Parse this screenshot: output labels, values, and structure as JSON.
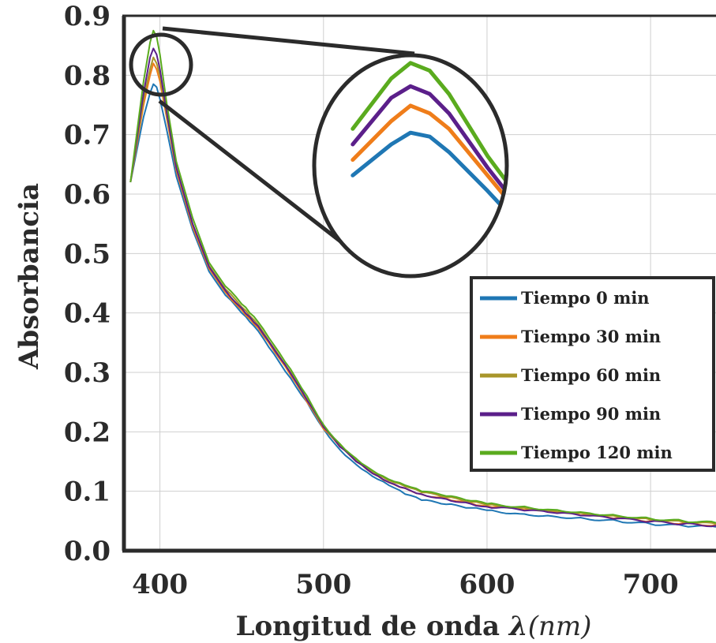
{
  "chart_data": {
    "type": "line",
    "xlabel": "Longitud de onda ",
    "xlabel_symbol": "λ",
    "xlabel_unit": "(nm)",
    "ylabel": "Absorbancia",
    "xlim": [
      378,
      740
    ],
    "ylim": [
      0.0,
      0.9
    ],
    "xticks": [
      400,
      500,
      600,
      700
    ],
    "yticks": [
      0.0,
      0.1,
      0.2,
      0.3,
      0.4,
      0.5,
      0.6,
      0.7,
      0.8,
      0.9
    ],
    "xtick_labels": [
      "400",
      "500",
      "600",
      "700"
    ],
    "ytick_labels": [
      "0.0",
      "0.1",
      "0.2",
      "0.3",
      "0.4",
      "0.5",
      "0.6",
      "0.7",
      "0.8",
      "0.9"
    ],
    "grid": true,
    "legend_position": "right",
    "inset": "zoom-circle",
    "x": [
      382,
      390,
      394,
      396,
      398,
      400,
      404,
      410,
      420,
      430,
      440,
      450,
      455,
      460,
      470,
      480,
      490,
      500,
      510,
      520,
      530,
      540,
      550,
      560,
      575,
      590,
      600,
      620,
      640,
      660,
      680,
      700,
      720,
      740
    ],
    "series": [
      {
        "name": "Tiempo 0 min",
        "color": "#1f77b4",
        "values": [
          0.62,
          0.73,
          0.77,
          0.785,
          0.78,
          0.76,
          0.71,
          0.63,
          0.54,
          0.47,
          0.43,
          0.4,
          0.385,
          0.37,
          0.33,
          0.29,
          0.25,
          0.205,
          0.17,
          0.145,
          0.125,
          0.11,
          0.095,
          0.085,
          0.078,
          0.072,
          0.068,
          0.062,
          0.058,
          0.054,
          0.05,
          0.045,
          0.042,
          0.04
        ]
      },
      {
        "name": "Tiempo 30 min",
        "color": "#ef7d1a",
        "values": [
          0.62,
          0.75,
          0.8,
          0.82,
          0.81,
          0.79,
          0.73,
          0.64,
          0.545,
          0.475,
          0.435,
          0.405,
          0.39,
          0.375,
          0.335,
          0.295,
          0.25,
          0.205,
          0.175,
          0.15,
          0.13,
          0.115,
          0.105,
          0.095,
          0.088,
          0.08,
          0.075,
          0.07,
          0.065,
          0.06,
          0.055,
          0.05,
          0.046,
          0.043
        ]
      },
      {
        "name": "Tiempo 60 min",
        "color": "#a8962a",
        "values": [
          0.62,
          0.76,
          0.81,
          0.83,
          0.82,
          0.8,
          0.735,
          0.645,
          0.55,
          0.48,
          0.44,
          0.41,
          0.395,
          0.38,
          0.34,
          0.3,
          0.255,
          0.21,
          0.178,
          0.152,
          0.132,
          0.118,
          0.108,
          0.098,
          0.09,
          0.082,
          0.077,
          0.072,
          0.067,
          0.062,
          0.057,
          0.052,
          0.048,
          0.045
        ]
      },
      {
        "name": "Tiempo 90 min",
        "color": "#5b1f8a",
        "values": [
          0.62,
          0.77,
          0.83,
          0.845,
          0.835,
          0.81,
          0.74,
          0.645,
          0.55,
          0.478,
          0.438,
          0.408,
          0.393,
          0.378,
          0.338,
          0.298,
          0.253,
          0.208,
          0.175,
          0.15,
          0.13,
          0.115,
          0.105,
          0.095,
          0.087,
          0.079,
          0.074,
          0.069,
          0.064,
          0.059,
          0.054,
          0.049,
          0.045,
          0.042
        ]
      },
      {
        "name": "Tiempo 120 min",
        "color": "#5aab1e",
        "values": [
          0.62,
          0.79,
          0.855,
          0.875,
          0.865,
          0.835,
          0.755,
          0.655,
          0.56,
          0.485,
          0.445,
          0.415,
          0.4,
          0.385,
          0.345,
          0.305,
          0.26,
          0.212,
          0.18,
          0.155,
          0.135,
          0.12,
          0.11,
          0.1,
          0.092,
          0.084,
          0.079,
          0.074,
          0.069,
          0.064,
          0.059,
          0.054,
          0.05,
          0.047
        ]
      }
    ]
  }
}
